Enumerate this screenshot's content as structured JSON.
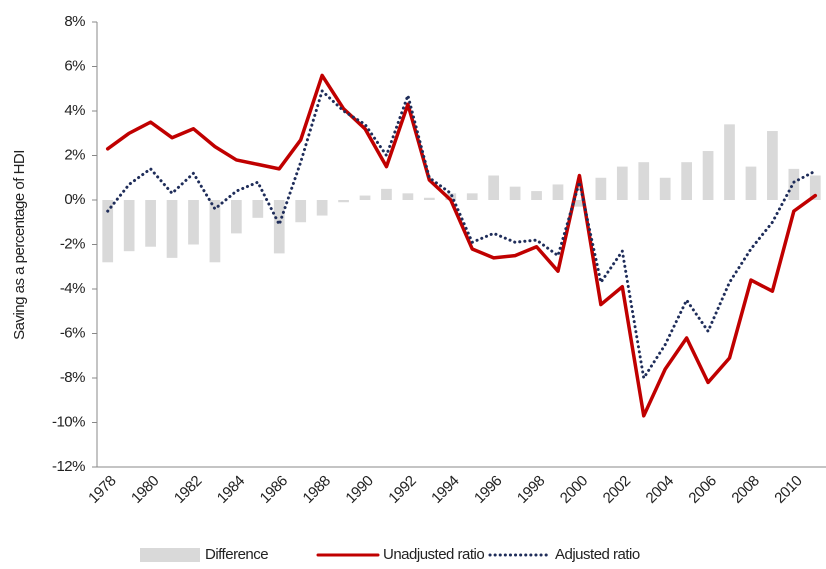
{
  "chart_data": {
    "type": "bar",
    "y_label": "Saving as a percentage of HDI",
    "categories": [
      "1978",
      null,
      "1980",
      null,
      "1982",
      null,
      "1984",
      null,
      "1986",
      null,
      "1988",
      null,
      "1990",
      null,
      "1992",
      null,
      "1994",
      null,
      "1996",
      null,
      "1998",
      null,
      "2000",
      null,
      "2002",
      null,
      "2004",
      null,
      "2006",
      null,
      "2008",
      null,
      "2010",
      null
    ],
    "series": [
      {
        "name": "Difference",
        "type": "bar",
        "color": "#d9d9d9",
        "values": [
          -2.8,
          -2.3,
          -2.1,
          -2.6,
          -2.0,
          -2.8,
          -1.5,
          -0.8,
          -2.4,
          -1.0,
          -0.7,
          -0.1,
          0.2,
          0.5,
          0.3,
          0.1,
          0.3,
          0.3,
          1.1,
          0.6,
          0.4,
          0.7,
          -0.3,
          1.0,
          1.5,
          1.7,
          1.0,
          1.7,
          2.2,
          3.4,
          1.5,
          3.1,
          1.4,
          1.1
        ]
      },
      {
        "name": "Unadjusted ratio",
        "type": "line",
        "style": "solid",
        "color": "#c00000",
        "values": [
          2.3,
          3.0,
          3.5,
          2.8,
          3.2,
          2.4,
          1.8,
          1.6,
          1.4,
          2.7,
          5.6,
          4.1,
          3.2,
          1.5,
          4.3,
          0.9,
          0.0,
          -2.2,
          -2.6,
          -2.5,
          -2.1,
          -3.2,
          1.1,
          -4.7,
          -3.9,
          -9.7,
          -7.6,
          -6.2,
          -8.2,
          -7.1,
          -3.6,
          -4.1,
          -0.5,
          0.2
        ]
      },
      {
        "name": "Adjusted ratio",
        "type": "line",
        "style": "dotted",
        "color": "#1f2d5a",
        "values": [
          -0.5,
          0.7,
          1.4,
          0.3,
          1.2,
          -0.4,
          0.4,
          0.8,
          -1.1,
          1.7,
          4.9,
          4.0,
          3.4,
          2.0,
          4.7,
          1.0,
          0.3,
          -1.9,
          -1.5,
          -1.9,
          -1.8,
          -2.5,
          0.8,
          -3.7,
          -2.3,
          -8.0,
          -6.5,
          -4.5,
          -5.9,
          -3.7,
          -2.2,
          -1.0,
          0.8,
          1.3
        ]
      }
    ],
    "ylim": [
      -12,
      8
    ],
    "yticks": [
      {
        "value": -12,
        "label": "-12%"
      },
      {
        "value": -10,
        "label": "-10%"
      },
      {
        "value": -8,
        "label": "-8%"
      },
      {
        "value": -6,
        "label": "-6%"
      },
      {
        "value": -4,
        "label": "-4%"
      },
      {
        "value": -2,
        "label": "-2%"
      },
      {
        "value": 0,
        "label": "0%"
      },
      {
        "value": 2,
        "label": "2%"
      },
      {
        "value": 4,
        "label": "4%"
      },
      {
        "value": 6,
        "label": "6%"
      },
      {
        "value": 8,
        "label": "8%"
      }
    ],
    "grid": false,
    "legend": "bottom"
  }
}
